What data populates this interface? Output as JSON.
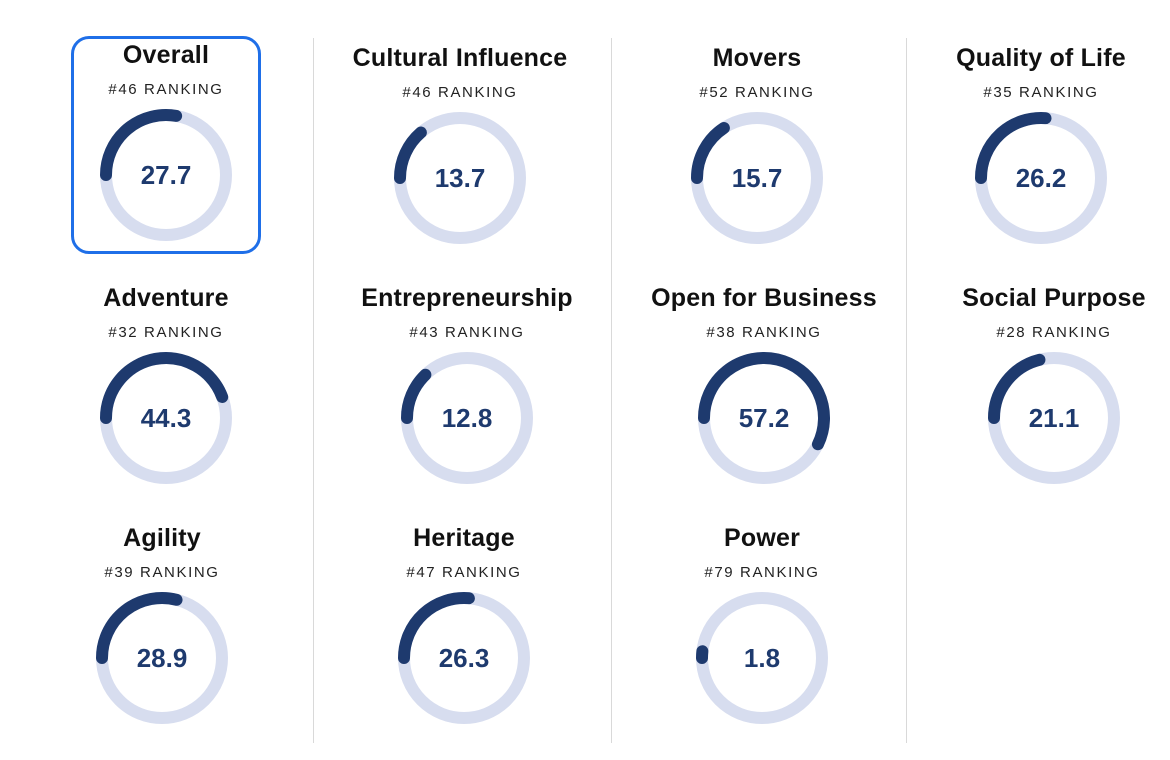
{
  "colors": {
    "arc": "#1e3a6e",
    "track": "#d7ddef",
    "value_text": "#1e3a6e",
    "selected_border": "#1f6fe8"
  },
  "chart_data": {
    "type": "gauge",
    "max": 100,
    "items": [
      {
        "id": "overall",
        "title": "Overall",
        "rank": "#46 RANKING",
        "value": 27.7,
        "value_label": "27.7",
        "selected": true
      },
      {
        "id": "cultural-influence",
        "title": "Cultural Influence",
        "rank": "#46 RANKING",
        "value": 13.7,
        "value_label": "13.7"
      },
      {
        "id": "movers",
        "title": "Movers",
        "rank": "#52 RANKING",
        "value": 15.7,
        "value_label": "15.7"
      },
      {
        "id": "quality-of-life",
        "title": "Quality of Life",
        "rank": "#35 RANKING",
        "value": 26.2,
        "value_label": "26.2"
      },
      {
        "id": "adventure",
        "title": "Adventure",
        "rank": "#32 RANKING",
        "value": 44.3,
        "value_label": "44.3"
      },
      {
        "id": "entrepreneurship",
        "title": "Entrepreneurship",
        "rank": "#43 RANKING",
        "value": 12.8,
        "value_label": "12.8"
      },
      {
        "id": "open-for-business",
        "title": "Open for Business",
        "rank": "#38 RANKING",
        "value": 57.2,
        "value_label": "57.2"
      },
      {
        "id": "social-purpose",
        "title": "Social Purpose",
        "rank": "#28 RANKING",
        "value": 21.1,
        "value_label": "21.1"
      },
      {
        "id": "agility",
        "title": "Agility",
        "rank": "#39 RANKING",
        "value": 28.9,
        "value_label": "28.9"
      },
      {
        "id": "heritage",
        "title": "Heritage",
        "rank": "#47 RANKING",
        "value": 26.3,
        "value_label": "26.3"
      },
      {
        "id": "power",
        "title": "Power",
        "rank": "#79 RANKING",
        "value": 1.8,
        "value_label": "1.8"
      }
    ]
  }
}
